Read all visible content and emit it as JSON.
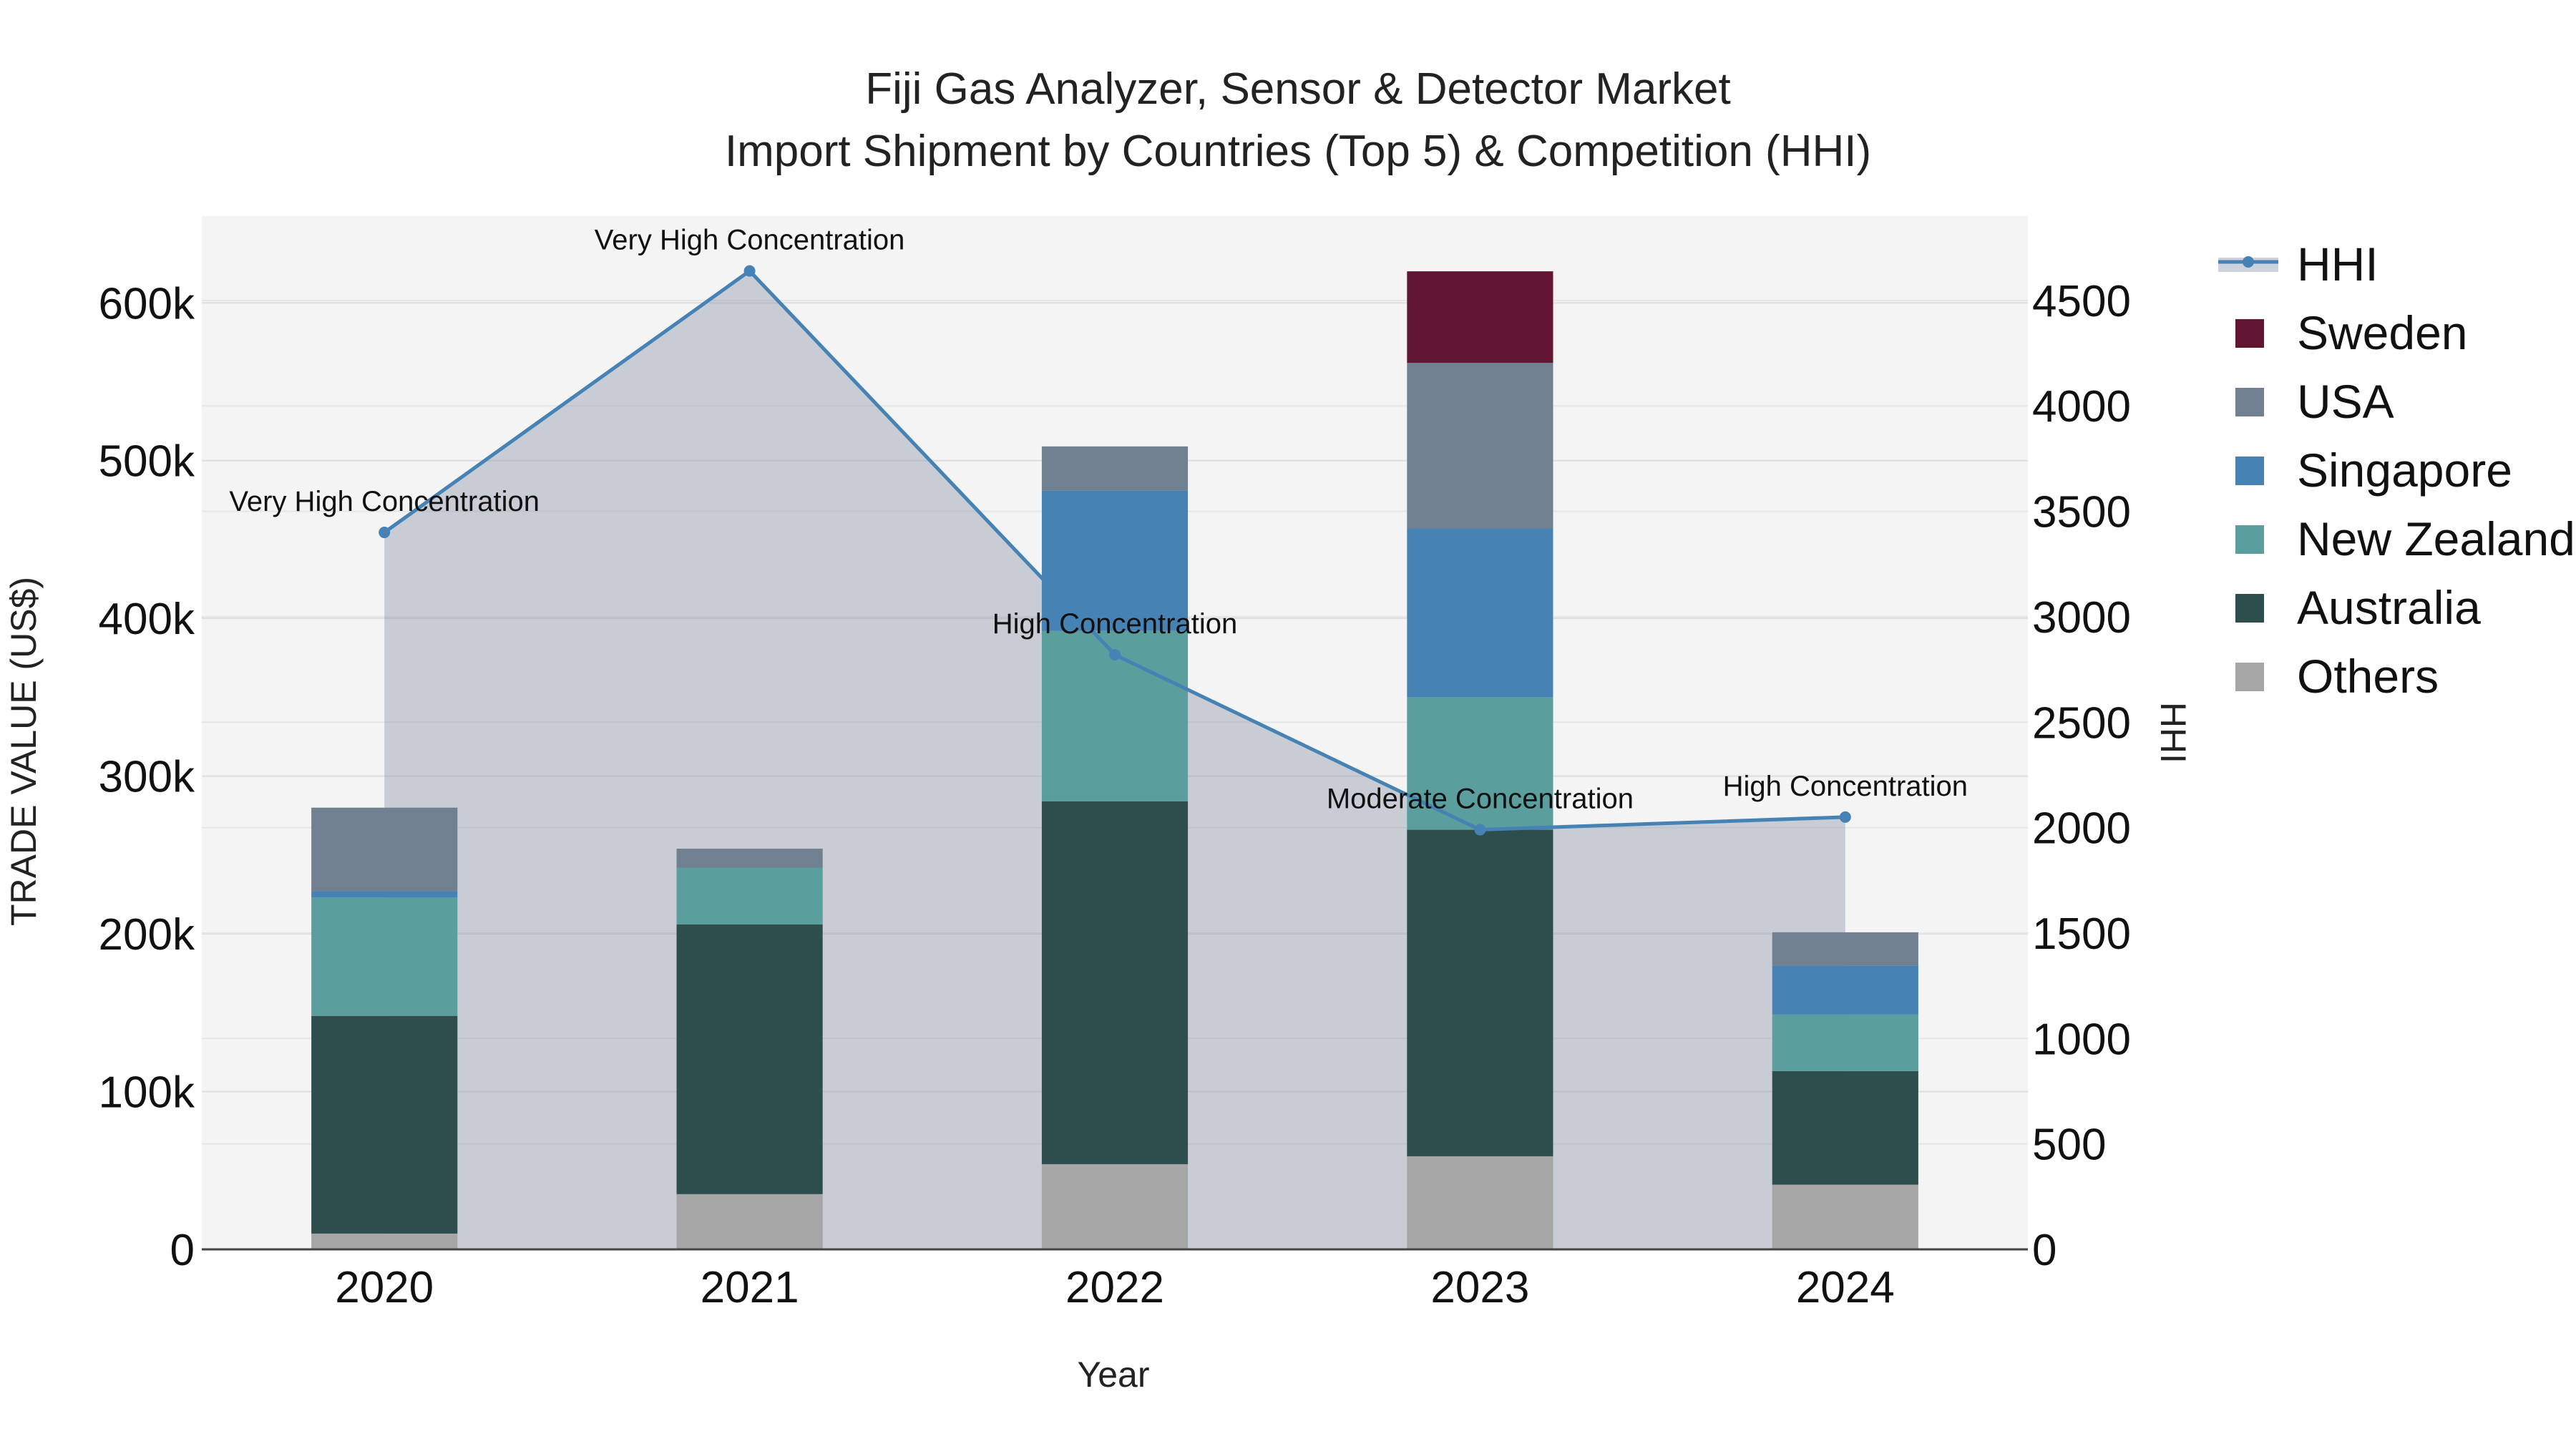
{
  "chart_data": {
    "type": "bar",
    "title_line1": "Fiji Gas Analyzer, Sensor & Detector Market",
    "title_line2": "Import Shipment by Countries (Top 5) & Competition (HHI)",
    "xlabel": "Year",
    "ylabel": "TRADE VALUE (US$)",
    "y2label": "HHI",
    "categories": [
      "2020",
      "2021",
      "2022",
      "2023",
      "2024"
    ],
    "ylim": [
      0,
      655000
    ],
    "y2lim": [
      0,
      4900
    ],
    "y_ticks": [
      0,
      100000,
      200000,
      300000,
      400000,
      500000,
      600000
    ],
    "y_tick_labels": [
      "0",
      "100k",
      "200k",
      "300k",
      "400k",
      "500k",
      "600k"
    ],
    "y2_ticks": [
      0,
      500,
      1000,
      1500,
      2000,
      2500,
      3000,
      3500,
      4000,
      4500
    ],
    "y2_tick_labels": [
      "0",
      "500",
      "1000",
      "1500",
      "2000",
      "2500",
      "3000",
      "3500",
      "4000",
      "4500"
    ],
    "series": [
      {
        "name": "Others",
        "color": "#a6a6a6",
        "values": [
          10000,
          35000,
          54000,
          59000,
          41000
        ]
      },
      {
        "name": "Australia",
        "color": "#2e4d4d",
        "values": [
          138000,
          171000,
          230000,
          207000,
          72000
        ]
      },
      {
        "name": "New Zealand",
        "color": "#5a9e9e",
        "values": [
          75000,
          36000,
          108000,
          84000,
          36000
        ]
      },
      {
        "name": "Singapore",
        "color": "#4682b4",
        "values": [
          4000,
          0,
          89000,
          107000,
          31000
        ]
      },
      {
        "name": "USA",
        "color": "#708090",
        "values": [
          53000,
          12000,
          28000,
          105000,
          21000
        ]
      },
      {
        "name": "Sweden",
        "color": "#631634",
        "values": [
          0,
          0,
          0,
          58000,
          0
        ]
      }
    ],
    "hhi": {
      "name": "HHI",
      "color": "#4682b4",
      "values": [
        3400,
        4640,
        2820,
        1990,
        2050
      ],
      "labels": [
        "Very High Concentration",
        "Very High Concentration",
        "High Concentration",
        "Moderate Concentration",
        "High Concentration"
      ]
    },
    "legend_order": [
      "HHI",
      "Sweden",
      "USA",
      "Singapore",
      "New Zealand",
      "Australia",
      "Others"
    ],
    "legend_position": "top-right"
  }
}
